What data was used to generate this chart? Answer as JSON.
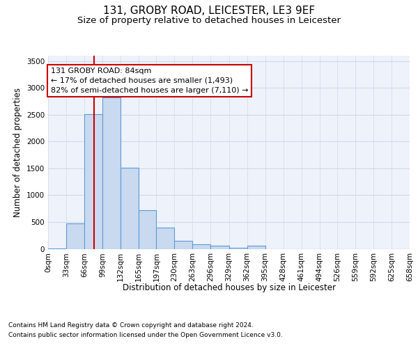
{
  "title_line1": "131, GROBY ROAD, LEICESTER, LE3 9EF",
  "title_line2": "Size of property relative to detached houses in Leicester",
  "xlabel": "Distribution of detached houses by size in Leicester",
  "ylabel": "Number of detached properties",
  "bin_labels": [
    "0sqm",
    "33sqm",
    "66sqm",
    "99sqm",
    "132sqm",
    "165sqm",
    "197sqm",
    "230sqm",
    "263sqm",
    "296sqm",
    "329sqm",
    "362sqm",
    "395sqm",
    "428sqm",
    "461sqm",
    "494sqm",
    "526sqm",
    "559sqm",
    "592sqm",
    "625sqm",
    "658sqm"
  ],
  "bin_edges": [
    0,
    33,
    66,
    99,
    132,
    165,
    197,
    230,
    263,
    296,
    329,
    362,
    395,
    428,
    461,
    494,
    526,
    559,
    592,
    625,
    658
  ],
  "bar_heights": [
    5,
    470,
    2510,
    2820,
    1510,
    720,
    390,
    155,
    90,
    55,
    20,
    55,
    0,
    0,
    0,
    0,
    0,
    0,
    0,
    0
  ],
  "bar_color": "#c9d9f0",
  "bar_edge_color": "#5b9bd5",
  "bar_edge_width": 0.8,
  "grid_color": "#d0d8e8",
  "bg_color": "#eef2fa",
  "property_size": 84,
  "red_line_color": "#cc0000",
  "annotation_text": "131 GROBY ROAD: 84sqm\n← 17% of detached houses are smaller (1,493)\n82% of semi-detached houses are larger (7,110) →",
  "annotation_box_color": "#ffffff",
  "annotation_box_edge": "#cc0000",
  "ylim": [
    0,
    3600
  ],
  "yticks": [
    0,
    500,
    1000,
    1500,
    2000,
    2500,
    3000,
    3500
  ],
  "footer_line1": "Contains HM Land Registry data © Crown copyright and database right 2024.",
  "footer_line2": "Contains public sector information licensed under the Open Government Licence v3.0.",
  "title_fontsize": 11,
  "subtitle_fontsize": 9.5,
  "axis_label_fontsize": 8.5,
  "tick_fontsize": 7.5,
  "annotation_fontsize": 8,
  "footer_fontsize": 6.5
}
